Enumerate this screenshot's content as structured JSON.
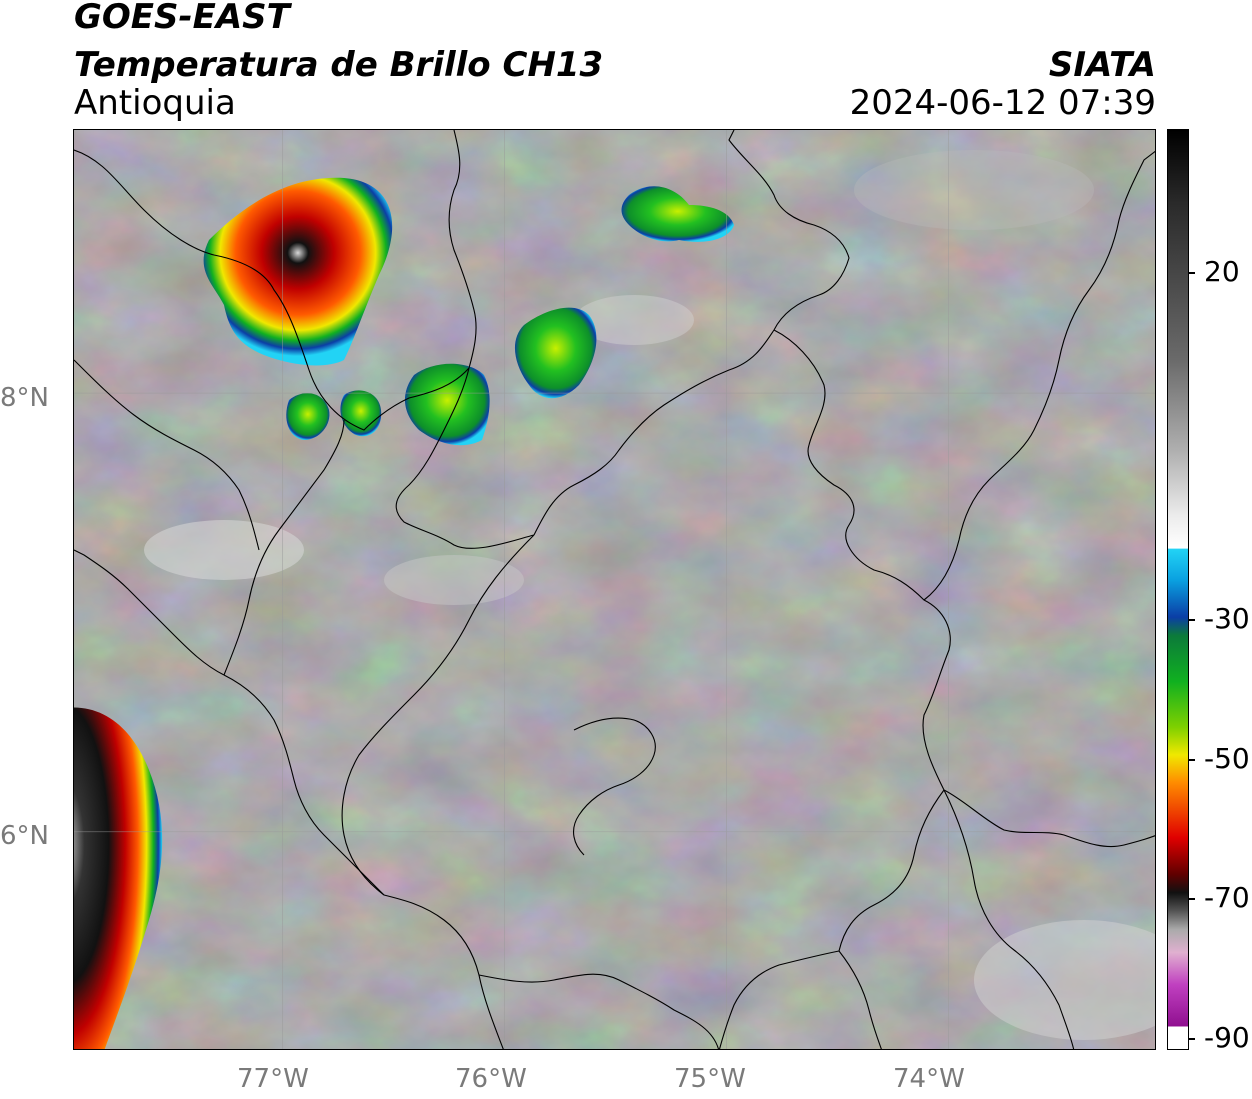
{
  "header": {
    "satellite": "GOES-EAST",
    "product": "Temperatura de Brillo CH13",
    "region": "Antioquia",
    "agency": "SIATA",
    "datetime": "2024-06-12 07:39"
  },
  "map": {
    "lon_range": [
      -77.94,
      -73.06
    ],
    "lat_range": [
      5.0,
      9.2
    ],
    "lon_ticks": [
      "77°W",
      "76°W",
      "75°W",
      "74°W"
    ],
    "lat_ticks": [
      "8°N",
      "6°N"
    ],
    "gridlines": true,
    "background": "grayscale brightness temperature",
    "cold_cloud_cells": [
      "northwest near 8.5°N 76.8°W",
      "west edge near 5.6°N 77.8°W",
      "north-central small cells near 8.0°N 76.2°W and 8.3°N 75.8°W",
      "north near 8.8°N 75.1°W"
    ]
  },
  "colorbar": {
    "ticks": [
      "20",
      "-30",
      "-50",
      "-70",
      "-90"
    ],
    "colors": {
      "cyan": "#22d3f5",
      "blue": "#0b3ea6",
      "green": "#10b020",
      "yellow": "#f0e800",
      "orange": "#ff8c00",
      "red": "#e00000",
      "black": "#111111",
      "magenta": "#c040c0"
    }
  }
}
